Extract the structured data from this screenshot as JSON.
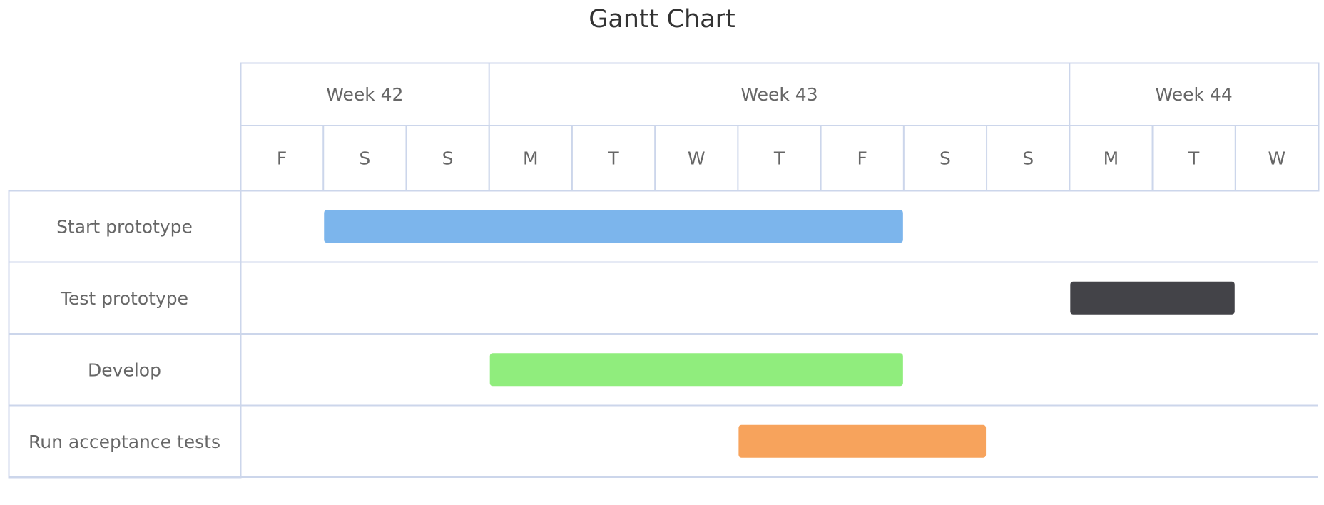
{
  "chart_data": {
    "type": "gantt",
    "title": "Gantt Chart",
    "weeks": [
      {
        "label": "Week 42",
        "start_day": 0,
        "end_day": 3
      },
      {
        "label": "Week 43",
        "start_day": 3,
        "end_day": 10
      },
      {
        "label": "Week 44",
        "start_day": 10,
        "end_day": 13
      }
    ],
    "days": [
      "F",
      "S",
      "S",
      "M",
      "T",
      "W",
      "T",
      "F",
      "S",
      "S",
      "M",
      "T",
      "W"
    ],
    "tasks": [
      {
        "name": "Start prototype",
        "start_day": 1,
        "end_day": 8,
        "color": "#7cb5ec"
      },
      {
        "name": "Test prototype",
        "start_day": 10,
        "end_day": 12,
        "color": "#434348"
      },
      {
        "name": "Develop",
        "start_day": 3,
        "end_day": 8,
        "color": "#90ed7d"
      },
      {
        "name": "Run acceptance tests",
        "start_day": 6,
        "end_day": 9,
        "color": "#f7a35c"
      }
    ],
    "grid_color": "#ccd6eb",
    "text_color": "#666666",
    "title_color": "#333333"
  }
}
